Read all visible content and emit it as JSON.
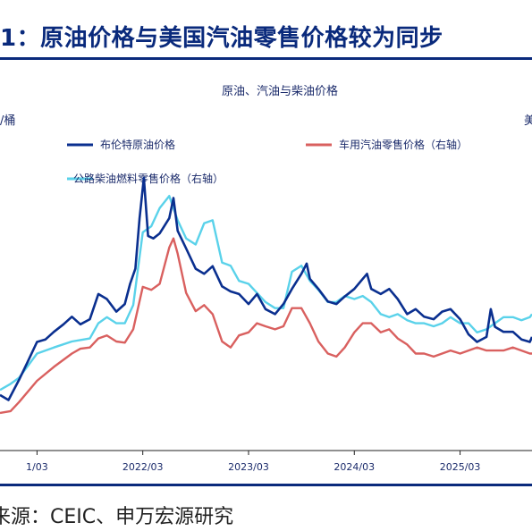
{
  "page": {
    "title": "1：原油价格与美国汽油零售价格较为同步",
    "source": "来源：CEIC、申万宏源研究"
  },
  "chart_data": {
    "type": "line",
    "title": "原油、汽油与柴油价格",
    "left_unit": "/桶",
    "right_unit": "美",
    "x_tick_labels": [
      "1/03",
      "2022/03",
      "2023/03",
      "2024/03",
      "2025/03"
    ],
    "x_ticks": [
      2021.17,
      2022.17,
      2023.17,
      2024.17,
      2025.17
    ],
    "x_range": [
      2020.82,
      2025.85
    ],
    "y_left_range": [
      20,
      140
    ],
    "y_right_range": [
      1.5,
      6.5
    ],
    "grid": false,
    "legend_position": "top",
    "series": [
      {
        "name": "布伦特原油价格",
        "axis": "left",
        "color": "#0a2f8f",
        "x": [
          2020.82,
          2020.9,
          2021.0,
          2021.08,
          2021.17,
          2021.25,
          2021.33,
          2021.42,
          2021.5,
          2021.58,
          2021.67,
          2021.75,
          2021.83,
          2021.92,
          2022.0,
          2022.05,
          2022.1,
          2022.14,
          2022.18,
          2022.22,
          2022.27,
          2022.33,
          2022.42,
          2022.46,
          2022.5,
          2022.58,
          2022.67,
          2022.75,
          2022.83,
          2022.92,
          2023.0,
          2023.08,
          2023.17,
          2023.25,
          2023.33,
          2023.42,
          2023.5,
          2023.58,
          2023.67,
          2023.72,
          2023.75,
          2023.83,
          2023.92,
          2024.0,
          2024.08,
          2024.17,
          2024.25,
          2024.29,
          2024.33,
          2024.42,
          2024.5,
          2024.58,
          2024.67,
          2024.75,
          2024.83,
          2024.92,
          2025.0,
          2025.08,
          2025.17,
          2025.25,
          2025.33,
          2025.42,
          2025.46,
          2025.5,
          2025.58,
          2025.67,
          2025.75,
          2025.83,
          2025.85
        ],
        "values": [
          42,
          40,
          48,
          55,
          63,
          64,
          67,
          70,
          73,
          70,
          72,
          82,
          80,
          75,
          78,
          86,
          92,
          112,
          128,
          105,
          104,
          106,
          112,
          120,
          107,
          100,
          92,
          90,
          93,
          85,
          83,
          82,
          78,
          82,
          76,
          74,
          78,
          84,
          90,
          94,
          88,
          84,
          79,
          78,
          81,
          84,
          88,
          90,
          84,
          82,
          84,
          80,
          74,
          76,
          73,
          72,
          75,
          76,
          72,
          66,
          63,
          65,
          76,
          69,
          67,
          67,
          64,
          63,
          65
        ]
      },
      {
        "name": "车用汽油零售价格（右轴）",
        "axis": "right",
        "color": "#d9605f",
        "x": [
          2020.82,
          2020.92,
          2021.0,
          2021.17,
          2021.33,
          2021.5,
          2021.58,
          2021.67,
          2021.75,
          2021.83,
          2021.92,
          2022.0,
          2022.08,
          2022.17,
          2022.25,
          2022.33,
          2022.42,
          2022.46,
          2022.5,
          2022.58,
          2022.67,
          2022.75,
          2022.83,
          2022.92,
          2023.0,
          2023.08,
          2023.17,
          2023.25,
          2023.33,
          2023.42,
          2023.5,
          2023.58,
          2023.67,
          2023.75,
          2023.83,
          2023.92,
          2024.0,
          2024.08,
          2024.17,
          2024.25,
          2024.33,
          2024.42,
          2024.5,
          2024.58,
          2024.67,
          2024.75,
          2024.83,
          2024.92,
          2025.0,
          2025.08,
          2025.17,
          2025.25,
          2025.33,
          2025.42,
          2025.5,
          2025.58,
          2025.67,
          2025.75,
          2025.83,
          2025.85
        ],
        "values": [
          2.12,
          2.15,
          2.3,
          2.65,
          2.88,
          3.1,
          3.18,
          3.2,
          3.35,
          3.4,
          3.3,
          3.28,
          3.5,
          4.2,
          4.15,
          4.25,
          4.85,
          5.0,
          4.75,
          4.1,
          3.8,
          3.9,
          3.75,
          3.3,
          3.2,
          3.4,
          3.45,
          3.6,
          3.55,
          3.5,
          3.55,
          3.85,
          3.85,
          3.6,
          3.3,
          3.1,
          3.05,
          3.2,
          3.45,
          3.6,
          3.6,
          3.45,
          3.5,
          3.35,
          3.25,
          3.1,
          3.1,
          3.05,
          3.1,
          3.15,
          3.1,
          3.15,
          3.2,
          3.15,
          3.15,
          3.15,
          3.2,
          3.15,
          3.1,
          3.1
        ]
      },
      {
        "name": "公路柴油燃料零售价格（右轴）",
        "axis": "right",
        "color": "#5ad2ea",
        "x": [
          2020.82,
          2020.92,
          2021.0,
          2021.17,
          2021.33,
          2021.5,
          2021.67,
          2021.75,
          2021.83,
          2021.92,
          2022.0,
          2022.08,
          2022.17,
          2022.25,
          2022.33,
          2022.42,
          2022.5,
          2022.58,
          2022.67,
          2022.75,
          2022.83,
          2022.92,
          2023.0,
          2023.08,
          2023.17,
          2023.25,
          2023.33,
          2023.42,
          2023.5,
          2023.58,
          2023.67,
          2023.75,
          2023.83,
          2023.92,
          2024.0,
          2024.08,
          2024.17,
          2024.25,
          2024.33,
          2024.42,
          2024.5,
          2024.58,
          2024.67,
          2024.75,
          2024.83,
          2024.92,
          2025.0,
          2025.08,
          2025.17,
          2025.25,
          2025.33,
          2025.42,
          2025.5,
          2025.58,
          2025.67,
          2025.75,
          2025.83,
          2025.85
        ],
        "values": [
          2.5,
          2.6,
          2.7,
          3.1,
          3.2,
          3.3,
          3.35,
          3.6,
          3.7,
          3.6,
          3.6,
          3.9,
          5.1,
          5.2,
          5.5,
          5.7,
          5.3,
          5.0,
          4.9,
          5.25,
          5.3,
          4.6,
          4.55,
          4.3,
          4.25,
          4.1,
          3.95,
          3.85,
          3.85,
          4.45,
          4.55,
          4.3,
          4.15,
          3.95,
          3.95,
          4.05,
          4.0,
          4.05,
          3.95,
          3.75,
          3.7,
          3.75,
          3.65,
          3.6,
          3.6,
          3.55,
          3.6,
          3.7,
          3.6,
          3.6,
          3.45,
          3.5,
          3.6,
          3.7,
          3.7,
          3.65,
          3.7,
          3.75
        ]
      }
    ]
  }
}
